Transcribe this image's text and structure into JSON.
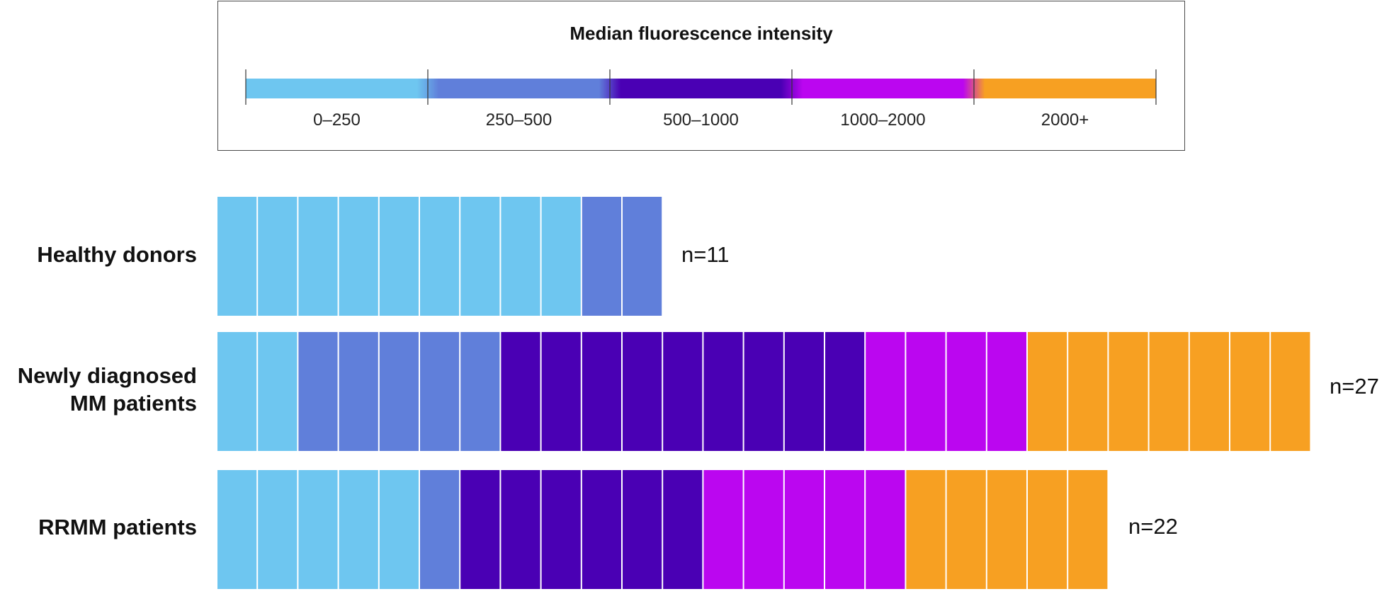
{
  "chart_data": {
    "type": "waffle",
    "title": "Median fluorescence intensity",
    "legend": [
      {
        "label": "0–250",
        "color": "#6ec6f0"
      },
      {
        "label": "250–500",
        "color": "#607fda"
      },
      {
        "label": "500–1000",
        "color": "#4a00b4"
      },
      {
        "label": "1000–2000",
        "color": "#bb06f0"
      },
      {
        "label": "2000+",
        "color": "#f7a022"
      }
    ],
    "rows": [
      {
        "label_lines": [
          "Healthy donors"
        ],
        "n": "n=11",
        "counts": [
          9,
          2,
          0,
          0,
          0
        ]
      },
      {
        "label_lines": [
          "Newly diagnosed",
          "MM patients"
        ],
        "n": "n=27",
        "counts": [
          2,
          5,
          9,
          4,
          7
        ]
      },
      {
        "label_lines": [
          "RRMM patients"
        ],
        "n": "n=22",
        "counts": [
          5,
          1,
          6,
          5,
          5
        ]
      }
    ]
  }
}
